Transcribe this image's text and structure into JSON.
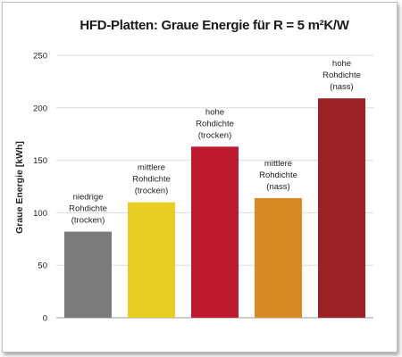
{
  "chart_data": {
    "type": "bar",
    "title": "HFD-Platten: Graue Energie für R = 5 m²K/W",
    "xlabel": "",
    "ylabel": "Graue Energie [kWh]",
    "ylim": [
      0,
      250
    ],
    "yticks": [
      "0",
      "50",
      "100",
      "150",
      "200",
      "250"
    ],
    "grid": true,
    "categories": [
      [
        "niedrige",
        "Rohdichte",
        "(trocken)"
      ],
      [
        "mittlere",
        "Rohdichte",
        "(trocken)"
      ],
      [
        "hohe",
        "Rohdichte",
        "(trocken)"
      ],
      [
        "mittlere",
        "Rohdichte",
        "(nass)"
      ],
      [
        "hohe",
        "Rohdichte",
        "(nass)"
      ]
    ],
    "values": [
      82,
      110,
      163,
      114,
      209
    ],
    "colors": [
      "#7b7b7b",
      "#e9cd25",
      "#bf1b30",
      "#d98a24",
      "#9b2326"
    ]
  }
}
